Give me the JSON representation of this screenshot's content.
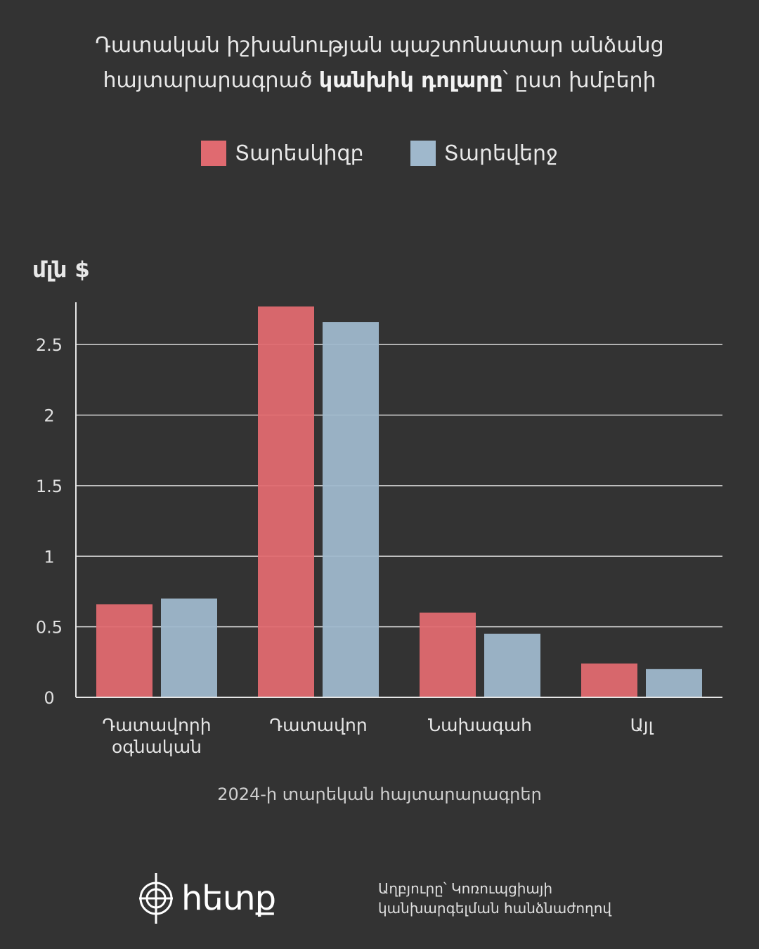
{
  "header": {
    "title_line1": "Դատական իշխանության պաշտոնատար անձանց",
    "title_line2_pre": "հայտարարագրած ",
    "title_line2_bold": "կանխիկ դոլարը",
    "title_line2_post": "՝ ըստ խմբերի"
  },
  "unit_label": "մլն $",
  "caption": "2024-ի տարեկան հայտարարագրեր",
  "footer": {
    "logo_text": "հետք",
    "source_line1": "Աղբյուրը՝ Կոռուպցիայի",
    "source_line2": "կանխարգելման հանձնաժողով"
  },
  "chart_data": {
    "type": "bar",
    "categories": [
      [
        "Դատավորի",
        "օգնական"
      ],
      [
        "Դատավոր"
      ],
      [
        "Նախագահ"
      ],
      [
        "Այլ"
      ]
    ],
    "series": [
      {
        "name": "Տարեսկիզբ",
        "color": "#e06a70",
        "values": [
          0.66,
          2.77,
          0.6,
          0.24
        ]
      },
      {
        "name": "Տարեվերջ",
        "color": "#9fb8cc",
        "values": [
          0.7,
          2.66,
          0.45,
          0.2
        ]
      }
    ],
    "y_ticks": [
      "0",
      "0.5",
      "1",
      "1.5",
      "2",
      "2.5"
    ],
    "ylim": [
      0,
      2.8
    ],
    "grid": true,
    "legend_position": "top-center"
  }
}
